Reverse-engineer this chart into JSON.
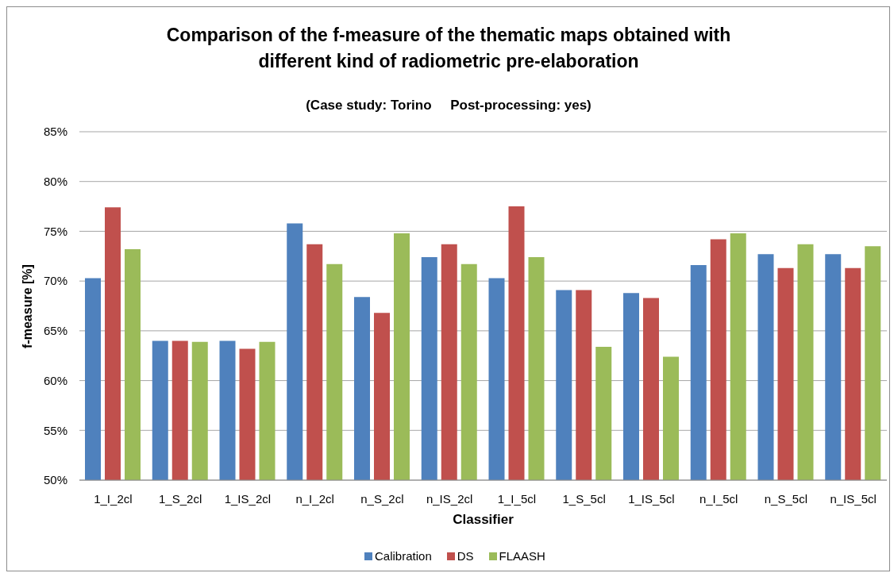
{
  "chart_data": {
    "type": "bar",
    "title": "Comparison of the f-measure of the thematic maps obtained with\ndifferent kind of radiometric pre-elaboration",
    "subtitle": "(Case study: Torino     Post-processing: yes)",
    "xlabel": "Classifier",
    "ylabel": "f-measure [%]",
    "categories": [
      "1_I_2cl",
      "1_S_2cl",
      "1_IS_2cl",
      "n_I_2cl",
      "n_S_2cl",
      "n_IS_2cl",
      "1_I_5cl",
      "1_S_5cl",
      "1_IS_5cl",
      "n_I_5cl",
      "n_S_5cl",
      "n_IS_5cl"
    ],
    "series": [
      {
        "name": "Calibration",
        "color": "#4f81bd",
        "values": [
          70.3,
          64.0,
          64.0,
          75.8,
          68.4,
          72.4,
          70.3,
          69.1,
          68.8,
          71.6,
          72.7,
          72.7
        ]
      },
      {
        "name": "DS",
        "color": "#c0504d",
        "values": [
          77.4,
          64.0,
          63.2,
          73.7,
          66.8,
          73.7,
          77.5,
          69.1,
          68.3,
          74.2,
          71.3,
          71.3
        ]
      },
      {
        "name": "FLAASH",
        "color": "#9bbb59",
        "values": [
          73.2,
          63.9,
          63.9,
          71.7,
          74.8,
          71.7,
          72.4,
          63.4,
          62.4,
          74.8,
          73.7,
          73.5
        ]
      }
    ],
    "ylim": [
      50,
      85
    ],
    "yticks": [
      {
        "value": 50,
        "label": "50%"
      },
      {
        "value": 55,
        "label": "55%"
      },
      {
        "value": 60,
        "label": "60%"
      },
      {
        "value": 65,
        "label": "65%"
      },
      {
        "value": 70,
        "label": "70%"
      },
      {
        "value": 75,
        "label": "75%"
      },
      {
        "value": 80,
        "label": "80%"
      },
      {
        "value": 85,
        "label": "85%"
      }
    ],
    "grid": "y",
    "legend": "bottom"
  }
}
